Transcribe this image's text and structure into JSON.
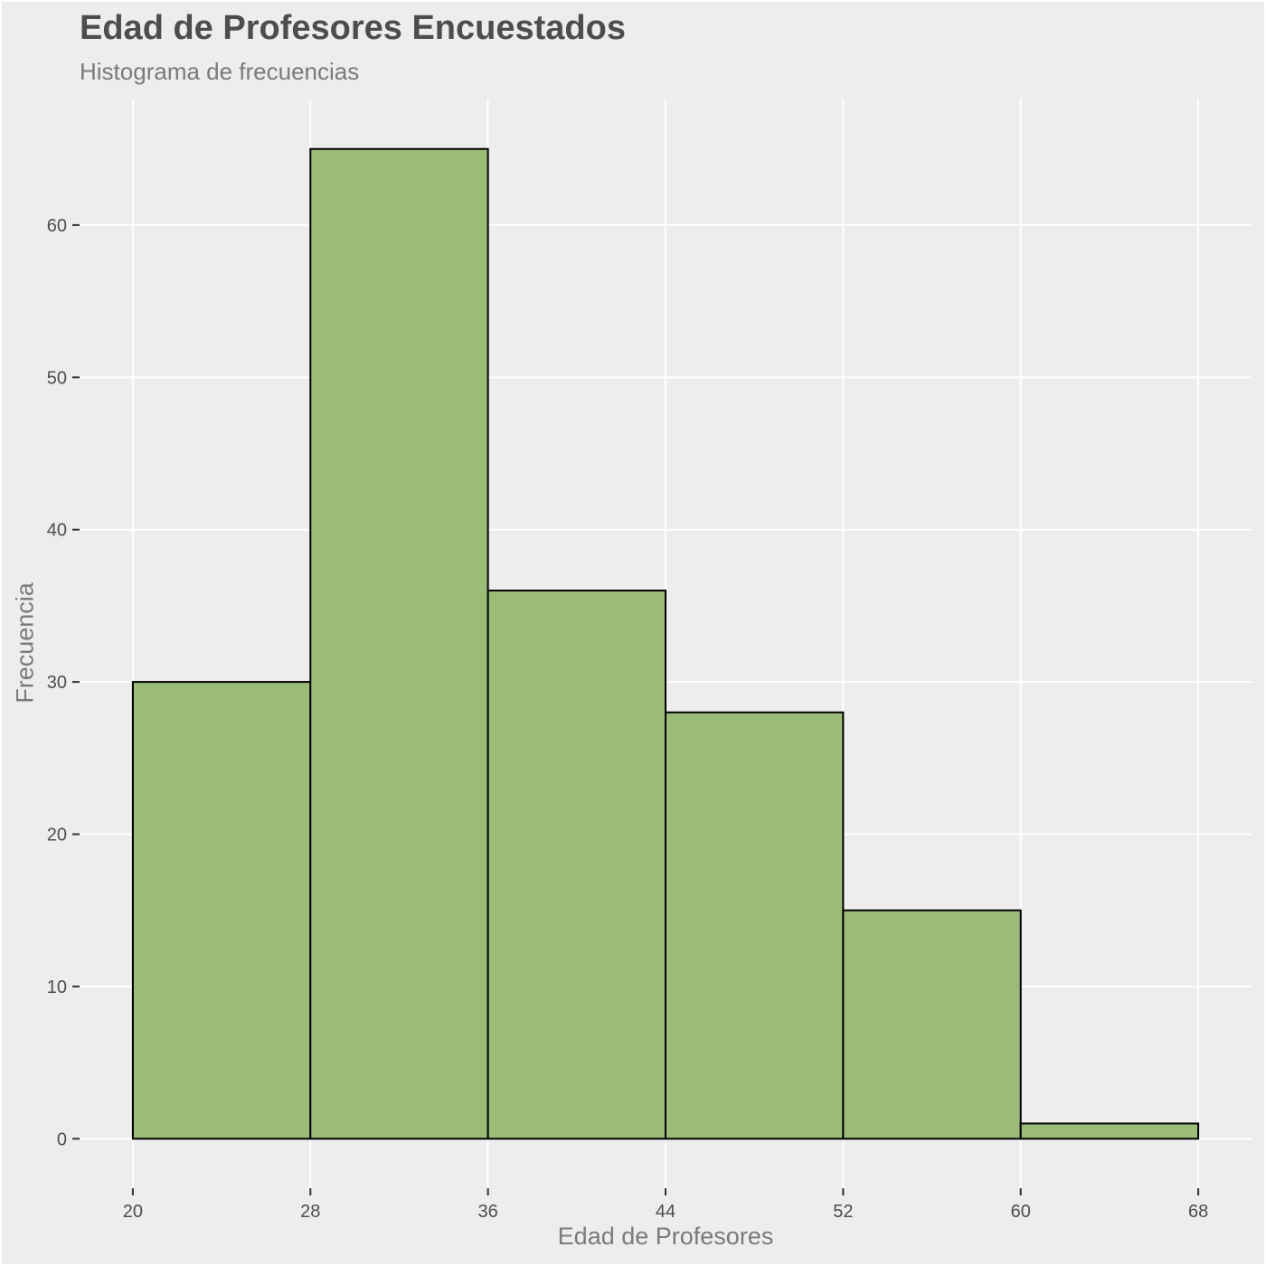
{
  "chart_data": {
    "type": "bar",
    "title": "Edad de Profesores Encuestados",
    "subtitle": "Histograma de frecuencias",
    "xlabel": "Edad de Profesores",
    "ylabel": "Frecuencia",
    "bins": [
      {
        "start": 20,
        "end": 28,
        "value": 30
      },
      {
        "start": 28,
        "end": 36,
        "value": 65
      },
      {
        "start": 36,
        "end": 44,
        "value": 36
      },
      {
        "start": 44,
        "end": 52,
        "value": 28
      },
      {
        "start": 52,
        "end": 60,
        "value": 15
      },
      {
        "start": 60,
        "end": 68,
        "value": 1
      }
    ],
    "x_ticks": [
      20,
      28,
      36,
      44,
      52,
      60,
      68
    ],
    "y_ticks": [
      0,
      10,
      20,
      30,
      40,
      50,
      60
    ],
    "xlim": [
      17.6,
      70.4
    ],
    "ylim": [
      -3.25,
      68.25
    ],
    "grid": true,
    "colors": {
      "bar_fill": "#9abc76",
      "bar_stroke": "#000000",
      "panel_bg": "#ededed",
      "grid": "#ffffff",
      "text": "#4d4d4d"
    }
  }
}
